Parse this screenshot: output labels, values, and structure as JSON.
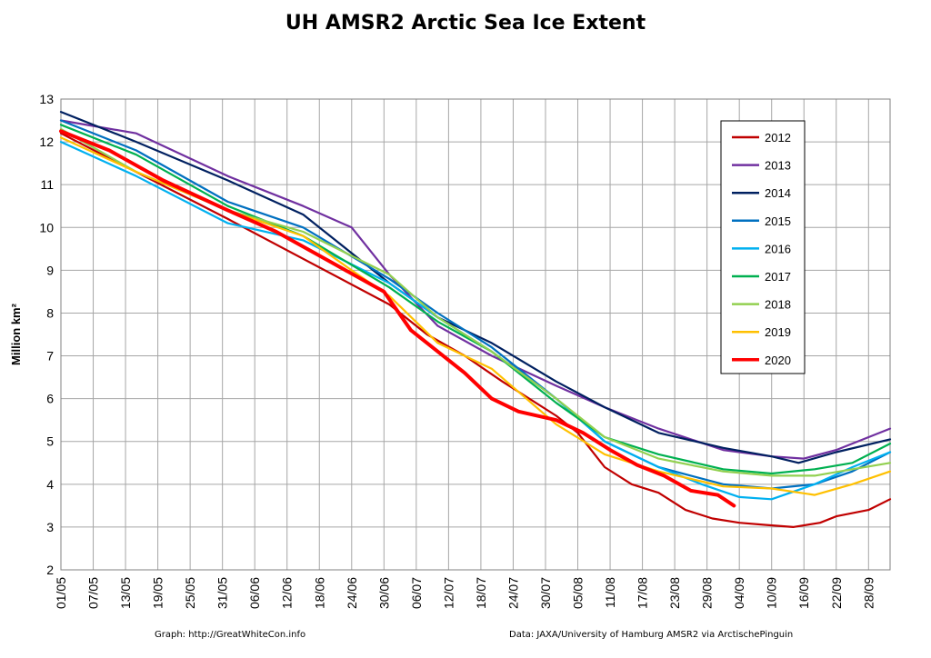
{
  "chart_data": {
    "type": "line",
    "title": "UH AMSR2 Arctic Sea Ice Extent",
    "xlabel": "",
    "ylabel": "Million km²",
    "ylim": [
      2,
      13
    ],
    "yticks": [
      "2",
      "3",
      "4",
      "5",
      "6",
      "7",
      "8",
      "9",
      "10",
      "11",
      "12",
      "13"
    ],
    "x_range": [
      "01/05",
      "02/10"
    ],
    "xticks": [
      "01/05",
      "07/05",
      "13/05",
      "19/05",
      "25/05",
      "31/05",
      "06/06",
      "12/06",
      "18/06",
      "24/06",
      "30/06",
      "06/07",
      "12/07",
      "18/07",
      "24/07",
      "30/07",
      "05/08",
      "11/08",
      "17/08",
      "23/08",
      "29/08",
      "04/09",
      "10/09",
      "16/09",
      "22/09",
      "28/09"
    ],
    "grid": true,
    "legend_position": "top-right",
    "series": [
      {
        "name": "2012",
        "color": "#c00000",
        "x": [
          "01/05",
          "01/06",
          "01/07",
          "08/07",
          "15/07",
          "22/07",
          "01/08",
          "05/08",
          "10/08",
          "15/08",
          "20/08",
          "25/08",
          "30/08",
          "04/09",
          "09/09",
          "14/09",
          "19/09",
          "22/09",
          "28/09",
          "02/10"
        ],
        "values": [
          12.2,
          10.2,
          8.2,
          7.5,
          7.0,
          6.4,
          5.6,
          5.2,
          4.4,
          4.0,
          3.8,
          3.4,
          3.2,
          3.1,
          3.05,
          3.0,
          3.1,
          3.25,
          3.4,
          3.65
        ]
      },
      {
        "name": "2013",
        "color": "#7030a0",
        "x": [
          "01/05",
          "15/05",
          "01/06",
          "15/06",
          "24/06",
          "01/07",
          "10/07",
          "20/07",
          "01/08",
          "10/08",
          "20/08",
          "01/09",
          "10/09",
          "16/09",
          "22/09",
          "02/10"
        ],
        "values": [
          12.5,
          12.2,
          11.2,
          10.5,
          10.0,
          8.9,
          7.7,
          7.0,
          6.3,
          5.8,
          5.3,
          4.8,
          4.65,
          4.6,
          4.8,
          5.3
        ]
      },
      {
        "name": "2014",
        "color": "#002060",
        "x": [
          "01/05",
          "15/05",
          "01/06",
          "15/06",
          "01/07",
          "10/07",
          "20/07",
          "01/08",
          "10/08",
          "20/08",
          "01/09",
          "10/09",
          "15/09",
          "22/09",
          "02/10"
        ],
        "values": [
          12.7,
          12.0,
          11.1,
          10.3,
          8.7,
          7.9,
          7.3,
          6.4,
          5.8,
          5.2,
          4.85,
          4.65,
          4.5,
          4.75,
          5.05
        ]
      },
      {
        "name": "2015",
        "color": "#0070c0",
        "x": [
          "01/05",
          "15/05",
          "01/06",
          "15/06",
          "01/07",
          "10/07",
          "20/07",
          "01/08",
          "10/08",
          "20/08",
          "01/09",
          "10/09",
          "18/09",
          "25/09",
          "02/10"
        ],
        "values": [
          12.5,
          11.8,
          10.6,
          10.0,
          8.8,
          8.0,
          7.2,
          6.0,
          5.0,
          4.4,
          4.0,
          3.9,
          4.0,
          4.3,
          4.75
        ]
      },
      {
        "name": "2016",
        "color": "#00b0f0",
        "x": [
          "01/05",
          "15/05",
          "01/06",
          "15/06",
          "01/07",
          "10/07",
          "20/07",
          "01/08",
          "10/08",
          "20/08",
          "28/08",
          "04/09",
          "10/09",
          "18/09",
          "25/09",
          "02/10"
        ],
        "values": [
          12.0,
          11.2,
          10.1,
          9.7,
          8.7,
          7.9,
          7.1,
          6.0,
          5.0,
          4.4,
          4.0,
          3.7,
          3.65,
          4.0,
          4.4,
          4.75
        ]
      },
      {
        "name": "2017",
        "color": "#00b050",
        "x": [
          "01/05",
          "15/05",
          "01/06",
          "15/06",
          "01/07",
          "10/07",
          "20/07",
          "01/08",
          "10/08",
          "20/08",
          "01/09",
          "10/09",
          "18/09",
          "25/09",
          "02/10"
        ],
        "values": [
          12.4,
          11.7,
          10.5,
          9.8,
          8.6,
          7.8,
          7.1,
          5.9,
          5.1,
          4.7,
          4.35,
          4.25,
          4.35,
          4.5,
          4.95
        ]
      },
      {
        "name": "2018",
        "color": "#92d050",
        "x": [
          "01/05",
          "15/05",
          "01/06",
          "15/06",
          "01/07",
          "10/07",
          "20/07",
          "01/08",
          "10/08",
          "20/08",
          "01/09",
          "10/09",
          "18/09",
          "25/09",
          "02/10"
        ],
        "values": [
          12.3,
          11.3,
          10.4,
          9.9,
          8.9,
          7.9,
          7.1,
          6.0,
          5.1,
          4.6,
          4.3,
          4.2,
          4.2,
          4.35,
          4.5
        ]
      },
      {
        "name": "2019",
        "color": "#ffc000",
        "x": [
          "01/05",
          "15/05",
          "01/06",
          "15/06",
          "24/06",
          "01/07",
          "10/07",
          "20/07",
          "01/08",
          "10/08",
          "20/08",
          "01/09",
          "10/09",
          "18/09",
          "25/09",
          "02/10"
        ],
        "values": [
          12.1,
          11.3,
          10.4,
          9.8,
          9.0,
          8.4,
          7.3,
          6.7,
          5.4,
          4.7,
          4.3,
          3.95,
          3.9,
          3.75,
          4.0,
          4.3
        ]
      },
      {
        "name": "2020",
        "color": "#ff0000",
        "x": [
          "01/05",
          "10/05",
          "20/05",
          "01/06",
          "10/06",
          "20/06",
          "30/06",
          "05/07",
          "10/07",
          "15/07",
          "20/07",
          "25/07",
          "01/08",
          "06/08",
          "11/08",
          "16/08",
          "21/08",
          "26/08",
          "31/08",
          "03/09"
        ],
        "values": [
          12.25,
          11.8,
          11.1,
          10.4,
          9.9,
          9.2,
          8.5,
          7.6,
          7.1,
          6.6,
          6.0,
          5.7,
          5.5,
          5.2,
          4.8,
          4.45,
          4.2,
          3.85,
          3.75,
          3.5
        ]
      }
    ]
  },
  "footer": {
    "left": "Graph: http://GreatWhiteCon.info",
    "right": "Data: JAXA/University of Hamburg AMSR2  via  ArctischePinguin"
  }
}
